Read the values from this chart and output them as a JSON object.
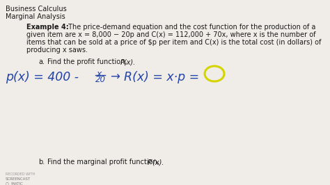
{
  "bg_color": "#f0ede8",
  "title_line1": "Business Calculus",
  "title_line2": "Marginal Analysis",
  "font_color": "#1a1a1a",
  "handwritten_color": "#2244aa",
  "circle_color": "#d4d400",
  "line1_bold": "Example 4:",
  "line1_rest": " The price-demand equation and the cost function for the production of a",
  "line2": "given item are x = 8,000 − 20p and C(x) = 112,000 + 70x, where x is the number of",
  "line3": "items that can be sold at a price of $p per item and C(x) is the total cost (in dollars) of",
  "line4": "producing x saws.",
  "part_a_label": "a.",
  "part_a_text": "Find the profit function, P(x).",
  "part_b_label": "b.",
  "part_b_text": "Find the marginal profit function, P′(x).",
  "hw_text1": "p(x) = 400 -",
  "hw_frac_num": "x",
  "hw_frac_den": "20",
  "hw_arrow": "→",
  "hw_text2": "R(x) = x·p =",
  "figwidth": 4.74,
  "figheight": 2.66,
  "dpi": 100
}
